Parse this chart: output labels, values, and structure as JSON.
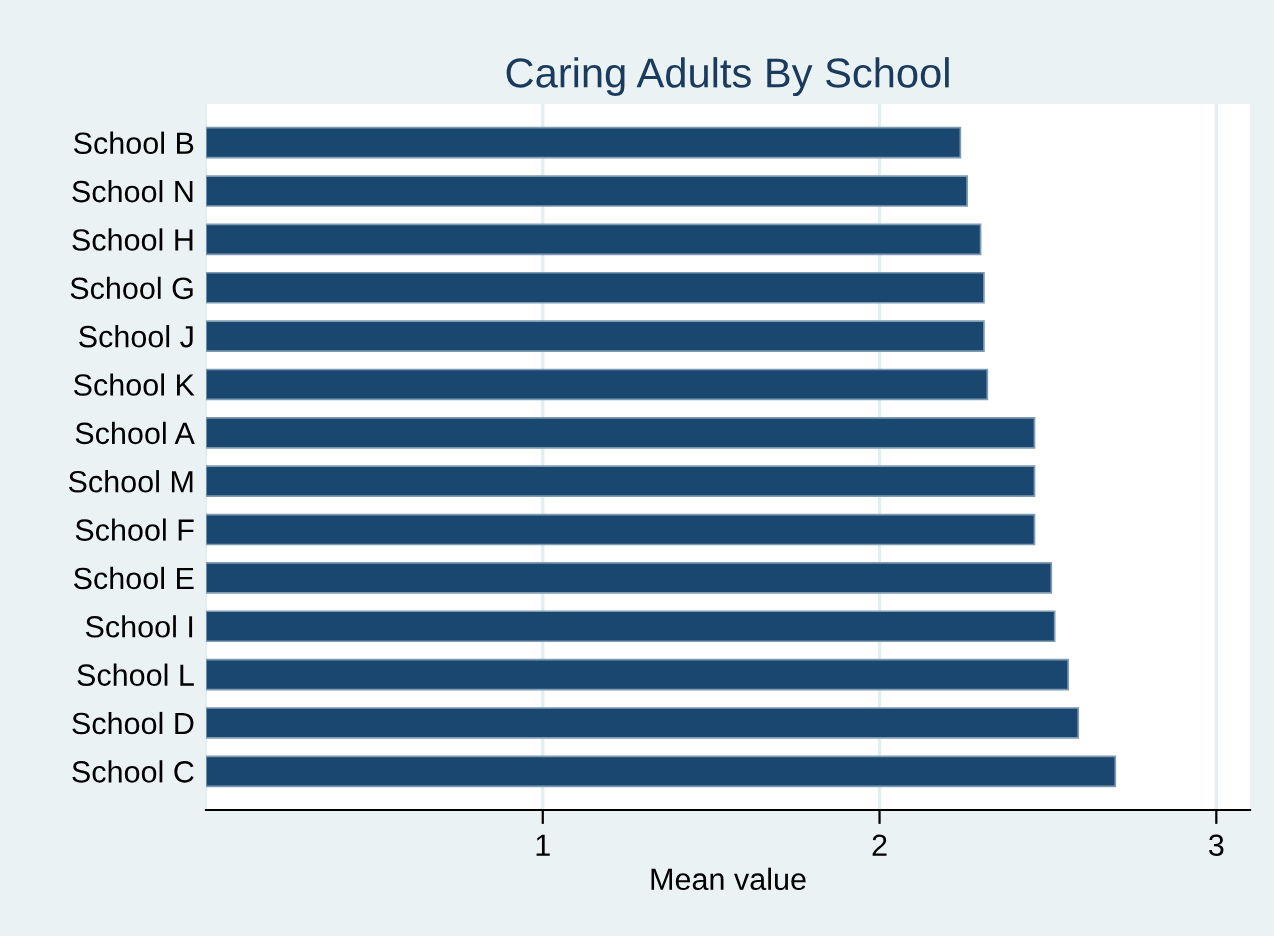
{
  "chart_data": {
    "type": "bar",
    "orientation": "horizontal",
    "title": "Caring Adults By School",
    "xlabel": "Mean value",
    "categories": [
      "School B",
      "School N",
      "School H",
      "School G",
      "School J",
      "School K",
      "School A",
      "School M",
      "School F",
      "School E",
      "School I",
      "School L",
      "School D",
      "School C"
    ],
    "values": [
      2.24,
      2.26,
      2.3,
      2.31,
      2.31,
      2.32,
      2.46,
      2.46,
      2.46,
      2.51,
      2.52,
      2.56,
      2.59,
      2.7
    ],
    "color": "#1a476f",
    "xlim": [
      0,
      3.1
    ],
    "xticks": [
      1,
      2,
      3
    ],
    "grid": "x"
  }
}
